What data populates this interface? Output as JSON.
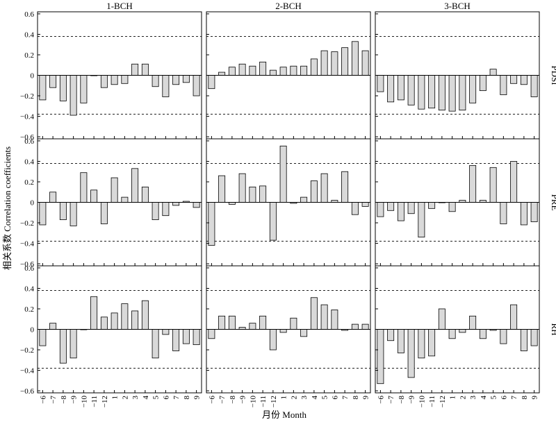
{
  "chart_data": {
    "type": "bar",
    "ylabel": "相关系数 Correlation coefficients",
    "xlabel": "月份 Month",
    "categories": [
      "-6",
      "-7",
      "-8",
      "-9",
      "-10",
      "-11",
      "-12",
      "1",
      "2",
      "3",
      "4",
      "5",
      "6",
      "7",
      "8",
      "9"
    ],
    "column_titles": [
      "1-BCH",
      "2-BCH",
      "3-BCH"
    ],
    "row_titles": [
      "PDSI",
      "PRE",
      "RH"
    ],
    "ylim": [
      -0.62,
      0.62
    ],
    "yticks": [
      -0.6,
      -0.4,
      -0.2,
      0,
      0.2,
      0.4,
      0.6
    ],
    "ytick_labels": [
      "−0.6",
      "−0.4",
      "−0.2",
      "0",
      "0.2",
      "0.4",
      "0.6"
    ],
    "xtick_labels": [
      "−6",
      "−7",
      "−8",
      "−9",
      "−10",
      "−11",
      "−12",
      "1",
      "2",
      "3",
      "4",
      "5",
      "6",
      "7",
      "8",
      "9"
    ],
    "significance_lines": [
      0.38,
      -0.38
    ],
    "bar_color": "#d9d9d9",
    "panels": [
      {
        "row": "PDSI",
        "column": "1-BCH",
        "values": [
          -0.24,
          -0.12,
          -0.25,
          -0.39,
          -0.27,
          0.0,
          -0.12,
          -0.09,
          -0.08,
          0.11,
          0.11,
          -0.11,
          -0.21,
          -0.09,
          -0.07,
          -0.2
        ]
      },
      {
        "row": "PDSI",
        "column": "2-BCH",
        "values": [
          -0.13,
          0.03,
          0.08,
          0.11,
          0.09,
          0.13,
          0.05,
          0.08,
          0.09,
          0.09,
          0.16,
          0.24,
          0.23,
          0.27,
          0.33,
          0.24
        ]
      },
      {
        "row": "PDSI",
        "column": "3-BCH",
        "values": [
          -0.16,
          -0.26,
          -0.24,
          -0.29,
          -0.33,
          -0.32,
          -0.34,
          -0.35,
          -0.34,
          -0.27,
          -0.15,
          0.06,
          -0.19,
          -0.08,
          -0.09,
          -0.21
        ]
      },
      {
        "row": "PRE",
        "column": "1-BCH",
        "values": [
          -0.22,
          0.1,
          -0.17,
          -0.23,
          0.29,
          0.12,
          -0.21,
          0.24,
          0.05,
          0.33,
          0.15,
          -0.17,
          -0.13,
          -0.03,
          0.01,
          -0.05
        ]
      },
      {
        "row": "PRE",
        "column": "2-BCH",
        "values": [
          -0.42,
          0.26,
          -0.02,
          0.28,
          0.15,
          0.16,
          -0.37,
          0.55,
          -0.01,
          0.05,
          0.21,
          0.28,
          0.02,
          0.3,
          -0.12,
          -0.04
        ]
      },
      {
        "row": "PRE",
        "column": "3-BCH",
        "values": [
          -0.14,
          -0.08,
          -0.18,
          -0.11,
          -0.34,
          -0.06,
          0.0,
          -0.09,
          0.02,
          0.36,
          0.02,
          0.34,
          -0.21,
          0.4,
          -0.22,
          -0.19
        ]
      },
      {
        "row": "RH",
        "column": "1-BCH",
        "values": [
          -0.16,
          0.06,
          -0.33,
          -0.28,
          0.0,
          0.32,
          0.12,
          0.16,
          0.25,
          0.18,
          0.28,
          -0.28,
          -0.05,
          -0.21,
          -0.14,
          -0.15
        ]
      },
      {
        "row": "RH",
        "column": "2-BCH",
        "values": [
          -0.09,
          0.13,
          0.13,
          0.02,
          0.06,
          0.13,
          -0.2,
          -0.03,
          0.11,
          -0.07,
          0.31,
          0.24,
          0.19,
          -0.01,
          0.05,
          0.05
        ]
      },
      {
        "row": "RH",
        "column": "3-BCH",
        "values": [
          -0.53,
          -0.11,
          -0.23,
          -0.47,
          -0.28,
          -0.26,
          0.2,
          -0.09,
          -0.03,
          0.13,
          -0.09,
          -0.01,
          -0.14,
          0.24,
          -0.21,
          -0.16
        ]
      }
    ]
  }
}
